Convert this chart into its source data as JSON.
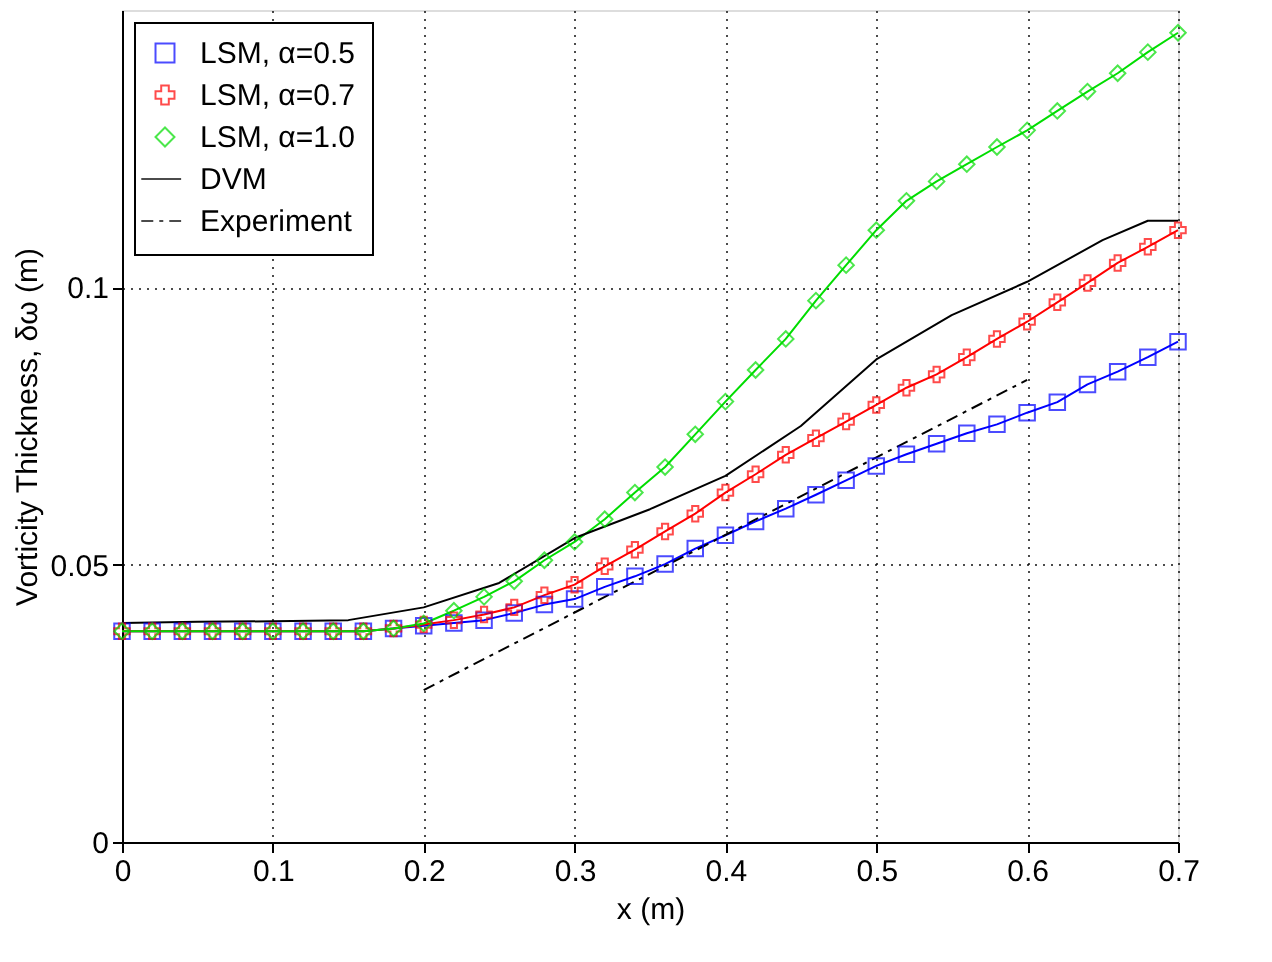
{
  "chart_data": {
    "type": "line",
    "xlabel": "x (m)",
    "ylabel": "Vorticity Thickness, δω (m)",
    "xlim": [
      0,
      0.7
    ],
    "xticks": [
      0,
      0.1,
      0.2,
      0.3,
      0.4,
      0.5,
      0.6,
      0.7
    ],
    "ylim": [
      0,
      0.15
    ],
    "yticks": [
      0,
      0.05,
      0.1
    ],
    "grid": true,
    "legend": "top left",
    "series": [
      {
        "name": "LSM, α=0.5",
        "color": "#0000ff",
        "marker": "square",
        "line_style": "solid",
        "x": [
          0,
          0.02,
          0.04,
          0.06,
          0.08,
          0.1,
          0.12,
          0.14,
          0.16,
          0.18,
          0.2,
          0.22,
          0.24,
          0.26,
          0.28,
          0.3,
          0.32,
          0.34,
          0.36,
          0.38,
          0.4,
          0.42,
          0.44,
          0.46,
          0.48,
          0.5,
          0.52,
          0.54,
          0.56,
          0.58,
          0.6,
          0.62,
          0.64,
          0.66,
          0.68,
          0.7
        ],
        "values": [
          0.038,
          0.038,
          0.038,
          0.038,
          0.038,
          0.038,
          0.038,
          0.038,
          0.038,
          0.0385,
          0.039,
          0.0395,
          0.04,
          0.0413,
          0.0428,
          0.0438,
          0.046,
          0.0479,
          0.0501,
          0.0529,
          0.0553,
          0.0578,
          0.0601,
          0.0626,
          0.0652,
          0.0678,
          0.0699,
          0.0718,
          0.0737,
          0.0753,
          0.0774,
          0.0793,
          0.0825,
          0.0848,
          0.0874,
          0.0902
        ]
      },
      {
        "name": "LSM, α=0.7",
        "color": "#ff0000",
        "marker": "cross",
        "line_style": "solid",
        "x": [
          0,
          0.02,
          0.04,
          0.06,
          0.08,
          0.1,
          0.12,
          0.14,
          0.16,
          0.18,
          0.2,
          0.22,
          0.24,
          0.26,
          0.28,
          0.3,
          0.32,
          0.34,
          0.36,
          0.38,
          0.4,
          0.42,
          0.44,
          0.46,
          0.48,
          0.5,
          0.52,
          0.54,
          0.56,
          0.58,
          0.6,
          0.62,
          0.64,
          0.66,
          0.68,
          0.7
        ],
        "values": [
          0.038,
          0.038,
          0.038,
          0.038,
          0.038,
          0.038,
          0.038,
          0.038,
          0.038,
          0.0385,
          0.0392,
          0.04,
          0.041,
          0.0423,
          0.0445,
          0.0464,
          0.0497,
          0.0527,
          0.056,
          0.0592,
          0.063,
          0.0663,
          0.0698,
          0.0728,
          0.0758,
          0.0788,
          0.0819,
          0.0843,
          0.0874,
          0.0907,
          0.0938,
          0.0973,
          0.1008,
          0.1044,
          0.1073,
          0.1103
        ]
      },
      {
        "name": "LSM, α=1.0",
        "color": "#00dd00",
        "marker": "diamond",
        "line_style": "solid",
        "x": [
          0,
          0.02,
          0.04,
          0.06,
          0.08,
          0.1,
          0.12,
          0.14,
          0.16,
          0.18,
          0.2,
          0.22,
          0.24,
          0.26,
          0.28,
          0.3,
          0.32,
          0.34,
          0.36,
          0.38,
          0.4,
          0.42,
          0.44,
          0.46,
          0.48,
          0.5,
          0.52,
          0.54,
          0.56,
          0.58,
          0.6,
          0.62,
          0.64,
          0.66,
          0.68,
          0.7
        ],
        "values": [
          0.038,
          0.038,
          0.038,
          0.038,
          0.038,
          0.038,
          0.038,
          0.038,
          0.038,
          0.0385,
          0.0394,
          0.0417,
          0.0442,
          0.047,
          0.0508,
          0.0541,
          0.0582,
          0.063,
          0.0676,
          0.0735,
          0.0794,
          0.0851,
          0.0907,
          0.0976,
          0.104,
          0.1103,
          0.1156,
          0.1191,
          0.1222,
          0.1253,
          0.1283,
          0.1318,
          0.1353,
          0.1386,
          0.1424,
          0.1459
        ]
      },
      {
        "name": "DVM",
        "color": "#000000",
        "marker": "none",
        "line_style": "solid",
        "x": [
          0,
          0.05,
          0.1,
          0.15,
          0.2,
          0.25,
          0.3,
          0.35,
          0.4,
          0.45,
          0.5,
          0.55,
          0.6,
          0.65,
          0.68,
          0.7
        ],
        "values": [
          0.0395,
          0.0397,
          0.0398,
          0.04,
          0.0423,
          0.0467,
          0.0548,
          0.06,
          0.066,
          0.075,
          0.087,
          0.095,
          0.101,
          0.1085,
          0.112,
          0.112
        ]
      },
      {
        "name": "Experiment",
        "color": "#000000",
        "marker": "none",
        "line_style": "dashdot",
        "x": [
          0.2,
          0.6
        ],
        "values": [
          0.0274,
          0.0833
        ]
      }
    ]
  }
}
